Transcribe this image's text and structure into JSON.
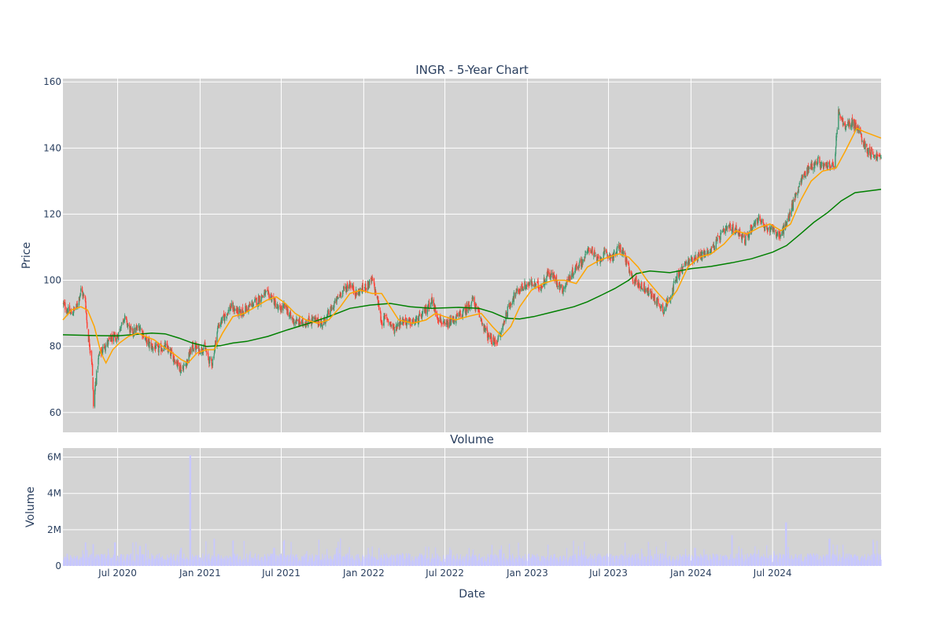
{
  "chart_data": [
    {
      "type": "candlestick",
      "title": "INGR - 5-Year Chart",
      "xlabel": "",
      "ylabel": "Price",
      "ylim": [
        54,
        161
      ],
      "xlim": [
        "2020-03-01",
        "2025-02-28"
      ],
      "y_ticks": [
        60,
        80,
        100,
        120,
        140,
        160
      ],
      "grid": true,
      "colors": {
        "plot_bg": "#d3d3d3",
        "grid": "#ffffff",
        "increasing": "#3d9970",
        "decreasing": "#ff4136",
        "ma_short": "#ffa500",
        "ma_long": "#008000"
      },
      "close_path": [
        [
          "2020-03-01",
          93
        ],
        [
          "2020-03-10",
          91
        ],
        [
          "2020-03-20",
          90
        ],
        [
          "2020-04-01",
          92
        ],
        [
          "2020-04-10",
          97
        ],
        [
          "2020-04-20",
          94
        ],
        [
          "2020-04-25",
          84
        ],
        [
          "2020-04-30",
          80
        ],
        [
          "2020-05-05",
          75
        ],
        [
          "2020-05-08",
          62
        ],
        [
          "2020-05-12",
          68
        ],
        [
          "2020-05-20",
          77
        ],
        [
          "2020-06-01",
          80
        ],
        [
          "2020-06-15",
          82
        ],
        [
          "2020-07-01",
          83
        ],
        [
          "2020-07-15",
          89
        ],
        [
          "2020-08-01",
          84
        ],
        [
          "2020-08-20",
          86
        ],
        [
          "2020-09-01",
          82
        ],
        [
          "2020-09-15",
          80
        ],
        [
          "2020-10-01",
          79
        ],
        [
          "2020-10-15",
          80
        ],
        [
          "2020-11-01",
          77
        ],
        [
          "2020-11-20",
          73
        ],
        [
          "2020-12-01",
          75
        ],
        [
          "2020-12-15",
          80
        ],
        [
          "2021-01-01",
          79
        ],
        [
          "2021-01-10",
          80
        ],
        [
          "2021-01-20",
          76
        ],
        [
          "2021-01-28",
          75
        ],
        [
          "2021-02-10",
          86
        ],
        [
          "2021-02-25",
          89
        ],
        [
          "2021-03-10",
          92
        ],
        [
          "2021-04-01",
          90
        ],
        [
          "2021-04-20",
          92
        ],
        [
          "2021-05-10",
          94
        ],
        [
          "2021-05-25",
          96
        ],
        [
          "2021-06-10",
          95
        ],
        [
          "2021-06-25",
          91
        ],
        [
          "2021-07-10",
          92
        ],
        [
          "2021-07-25",
          88
        ],
        [
          "2021-08-15",
          87
        ],
        [
          "2021-09-10",
          88
        ],
        [
          "2021-10-01",
          87
        ],
        [
          "2021-10-20",
          91
        ],
        [
          "2021-11-10",
          96
        ],
        [
          "2021-12-01",
          99
        ],
        [
          "2021-12-15",
          96
        ],
        [
          "2022-01-05",
          98
        ],
        [
          "2022-01-20",
          100
        ],
        [
          "2022-02-01",
          94
        ],
        [
          "2022-02-10",
          87
        ],
        [
          "2022-02-20",
          89
        ],
        [
          "2022-03-10",
          85
        ],
        [
          "2022-03-25",
          88
        ],
        [
          "2022-04-15",
          87
        ],
        [
          "2022-05-01",
          88
        ],
        [
          "2022-05-15",
          90
        ],
        [
          "2022-06-01",
          94
        ],
        [
          "2022-06-15",
          89
        ],
        [
          "2022-07-01",
          86
        ],
        [
          "2022-07-20",
          88
        ],
        [
          "2022-08-10",
          90
        ],
        [
          "2022-09-01",
          94
        ],
        [
          "2022-09-20",
          88
        ],
        [
          "2022-10-05",
          83
        ],
        [
          "2022-10-20",
          81
        ],
        [
          "2022-11-01",
          83
        ],
        [
          "2022-11-15",
          90
        ],
        [
          "2022-12-01",
          95
        ],
        [
          "2022-12-20",
          98
        ],
        [
          "2023-01-10",
          99
        ],
        [
          "2023-02-01",
          98
        ],
        [
          "2023-02-15",
          102
        ],
        [
          "2023-03-01",
          101
        ],
        [
          "2023-03-20",
          97
        ],
        [
          "2023-04-01",
          100
        ],
        [
          "2023-04-20",
          104
        ],
        [
          "2023-05-05",
          106
        ],
        [
          "2023-05-20",
          110
        ],
        [
          "2023-06-05",
          106
        ],
        [
          "2023-06-25",
          108
        ],
        [
          "2023-07-10",
          107
        ],
        [
          "2023-07-25",
          110
        ],
        [
          "2023-08-05",
          108
        ],
        [
          "2023-08-20",
          101
        ],
        [
          "2023-09-05",
          99
        ],
        [
          "2023-09-25",
          97
        ],
        [
          "2023-10-15",
          94
        ],
        [
          "2023-11-01",
          91
        ],
        [
          "2023-11-15",
          95
        ],
        [
          "2023-12-01",
          101
        ],
        [
          "2023-12-20",
          105
        ],
        [
          "2024-01-10",
          107
        ],
        [
          "2024-02-01",
          108
        ],
        [
          "2024-02-20",
          110
        ],
        [
          "2024-03-10",
          114
        ],
        [
          "2024-03-25",
          116
        ],
        [
          "2024-04-15",
          115
        ],
        [
          "2024-05-01",
          112
        ],
        [
          "2024-05-15",
          116
        ],
        [
          "2024-06-01",
          119
        ],
        [
          "2024-06-15",
          115
        ],
        [
          "2024-07-01",
          116
        ],
        [
          "2024-07-15",
          113
        ],
        [
          "2024-08-01",
          117
        ],
        [
          "2024-08-15",
          123
        ],
        [
          "2024-09-01",
          130
        ],
        [
          "2024-09-20",
          134
        ],
        [
          "2024-10-10",
          136
        ],
        [
          "2024-10-25",
          134
        ],
        [
          "2024-11-05",
          135
        ],
        [
          "2024-11-15",
          134
        ],
        [
          "2024-11-25",
          151
        ],
        [
          "2024-12-10",
          146
        ],
        [
          "2024-12-25",
          148
        ],
        [
          "2025-01-10",
          145
        ],
        [
          "2025-01-25",
          140
        ],
        [
          "2025-02-10",
          138
        ],
        [
          "2025-02-28",
          137
        ]
      ],
      "ma_short": [
        [
          "2020-03-01",
          88
        ],
        [
          "2020-03-20",
          91
        ],
        [
          "2020-04-10",
          92
        ],
        [
          "2020-04-25",
          91
        ],
        [
          "2020-05-10",
          86
        ],
        [
          "2020-05-25",
          78
        ],
        [
          "2020-06-05",
          75
        ],
        [
          "2020-06-20",
          79
        ],
        [
          "2020-07-05",
          81
        ],
        [
          "2020-07-25",
          83
        ],
        [
          "2020-08-15",
          84
        ],
        [
          "2020-09-01",
          83
        ],
        [
          "2020-09-20",
          82
        ],
        [
          "2020-10-10",
          80
        ],
        [
          "2020-11-01",
          78
        ],
        [
          "2020-11-20",
          76
        ],
        [
          "2020-12-05",
          75
        ],
        [
          "2020-12-25",
          78
        ],
        [
          "2021-01-15",
          79
        ],
        [
          "2021-02-01",
          79
        ],
        [
          "2021-02-20",
          84
        ],
        [
          "2021-03-15",
          89
        ],
        [
          "2021-04-10",
          90
        ],
        [
          "2021-05-05",
          92
        ],
        [
          "2021-05-30",
          94
        ],
        [
          "2021-06-20",
          95
        ],
        [
          "2021-07-10",
          93
        ],
        [
          "2021-08-01",
          90
        ],
        [
          "2021-08-25",
          88
        ],
        [
          "2021-09-20",
          87
        ],
        [
          "2021-10-15",
          88
        ],
        [
          "2021-11-10",
          92
        ],
        [
          "2021-12-01",
          96
        ],
        [
          "2021-12-25",
          97
        ],
        [
          "2022-01-20",
          96
        ],
        [
          "2022-02-10",
          96
        ],
        [
          "2022-03-01",
          92
        ],
        [
          "2022-03-20",
          88
        ],
        [
          "2022-04-20",
          87
        ],
        [
          "2022-05-20",
          88
        ],
        [
          "2022-06-10",
          90
        ],
        [
          "2022-07-01",
          89
        ],
        [
          "2022-07-25",
          88
        ],
        [
          "2022-08-20",
          89
        ],
        [
          "2022-09-20",
          90
        ],
        [
          "2022-10-15",
          86
        ],
        [
          "2022-11-05",
          83
        ],
        [
          "2022-11-25",
          86
        ],
        [
          "2022-12-15",
          92
        ],
        [
          "2023-01-10",
          97
        ],
        [
          "2023-02-05",
          99
        ],
        [
          "2023-03-01",
          100
        ],
        [
          "2023-03-25",
          100
        ],
        [
          "2023-04-20",
          99
        ],
        [
          "2023-05-15",
          104
        ],
        [
          "2023-06-10",
          106
        ],
        [
          "2023-07-01",
          107
        ],
        [
          "2023-07-25",
          108
        ],
        [
          "2023-08-15",
          107
        ],
        [
          "2023-09-05",
          104
        ],
        [
          "2023-09-25",
          100
        ],
        [
          "2023-10-20",
          96
        ],
        [
          "2023-11-10",
          93
        ],
        [
          "2023-12-01",
          97
        ],
        [
          "2023-12-25",
          104
        ],
        [
          "2024-01-20",
          107
        ],
        [
          "2024-02-15",
          108
        ],
        [
          "2024-03-15",
          111
        ],
        [
          "2024-04-10",
          115
        ],
        [
          "2024-05-05",
          114
        ],
        [
          "2024-06-01",
          116
        ],
        [
          "2024-06-25",
          117
        ],
        [
          "2024-07-20",
          115
        ],
        [
          "2024-08-10",
          117
        ],
        [
          "2024-09-01",
          124
        ],
        [
          "2024-09-25",
          130
        ],
        [
          "2024-10-20",
          133
        ],
        [
          "2024-11-20",
          134
        ],
        [
          "2024-12-10",
          139
        ],
        [
          "2025-01-05",
          146
        ],
        [
          "2025-01-20",
          145
        ],
        [
          "2025-02-28",
          143
        ]
      ],
      "ma_long": [
        [
          "2020-03-01",
          83.5
        ],
        [
          "2020-05-01",
          83.3
        ],
        [
          "2020-07-01",
          83.2
        ],
        [
          "2020-08-01",
          83.5
        ],
        [
          "2020-09-15",
          84
        ],
        [
          "2020-10-15",
          83.8
        ],
        [
          "2020-11-15",
          82.5
        ],
        [
          "2020-12-15",
          81
        ],
        [
          "2021-01-15",
          80
        ],
        [
          "2021-02-15",
          80.2
        ],
        [
          "2021-03-15",
          81
        ],
        [
          "2021-04-15",
          81.5
        ],
        [
          "2021-06-01",
          83
        ],
        [
          "2021-07-15",
          85
        ],
        [
          "2021-09-01",
          87
        ],
        [
          "2021-10-15",
          89
        ],
        [
          "2021-12-01",
          91.5
        ],
        [
          "2022-01-15",
          92.5
        ],
        [
          "2022-03-01",
          93
        ],
        [
          "2022-04-15",
          92
        ],
        [
          "2022-06-01",
          91.5
        ],
        [
          "2022-08-01",
          91.8
        ],
        [
          "2022-09-15",
          91.5
        ],
        [
          "2022-10-15",
          90.3
        ],
        [
          "2022-11-15",
          88.5
        ],
        [
          "2022-12-15",
          88.3
        ],
        [
          "2023-01-15",
          89
        ],
        [
          "2023-03-01",
          90.5
        ],
        [
          "2023-04-15",
          92
        ],
        [
          "2023-05-15",
          93.5
        ],
        [
          "2023-06-15",
          95.5
        ],
        [
          "2023-07-15",
          97.5
        ],
        [
          "2023-08-15",
          100
        ],
        [
          "2023-09-01",
          102
        ],
        [
          "2023-10-01",
          102.8
        ],
        [
          "2023-11-15",
          102.3
        ],
        [
          "2024-01-01",
          103.5
        ],
        [
          "2024-02-15",
          104.2
        ],
        [
          "2024-04-01",
          105.3
        ],
        [
          "2024-05-15",
          106.5
        ],
        [
          "2024-07-01",
          108.5
        ],
        [
          "2024-08-01",
          110.5
        ],
        [
          "2024-09-01",
          114
        ],
        [
          "2024-10-01",
          117.5
        ],
        [
          "2024-11-01",
          120.5
        ],
        [
          "2024-12-01",
          124
        ],
        [
          "2025-01-01",
          126.5
        ],
        [
          "2025-02-28",
          127.5
        ]
      ]
    },
    {
      "type": "bar",
      "title": "Volume",
      "xlabel": "Date",
      "ylabel": "Volume",
      "ylim": [
        0,
        6500000
      ],
      "y_ticks": [
        {
          "value": 0,
          "label": "0"
        },
        {
          "value": 2000000,
          "label": "2M"
        },
        {
          "value": 4000000,
          "label": "4M"
        },
        {
          "value": 6000000,
          "label": "6M"
        }
      ],
      "x_ticks": [
        {
          "date": "2020-07-01",
          "label": "Jul 2020"
        },
        {
          "date": "2021-01-01",
          "label": "Jan 2021"
        },
        {
          "date": "2021-07-01",
          "label": "Jul 2021"
        },
        {
          "date": "2022-01-01",
          "label": "Jan 2022"
        },
        {
          "date": "2022-07-01",
          "label": "Jul 2022"
        },
        {
          "date": "2023-01-01",
          "label": "Jan 2023"
        },
        {
          "date": "2023-07-01",
          "label": "Jul 2023"
        },
        {
          "date": "2024-01-01",
          "label": "Jan 2024"
        },
        {
          "date": "2024-07-01",
          "label": "Jul 2024"
        }
      ],
      "bar_color": "#c7c7ff",
      "base_volume_millions": 0.45,
      "spikes": [
        [
          "2020-04-20",
          1.3
        ],
        [
          "2020-05-08",
          1.2
        ],
        [
          "2020-06-25",
          1.3
        ],
        [
          "2020-08-20",
          1.1
        ],
        [
          "2020-11-20",
          1.0
        ],
        [
          "2020-12-10",
          6.1
        ],
        [
          "2021-02-01",
          1.5
        ],
        [
          "2021-03-15",
          1.4
        ],
        [
          "2021-06-15",
          1.0
        ],
        [
          "2021-11-01",
          1.0
        ],
        [
          "2022-02-05",
          1.0
        ],
        [
          "2022-11-01",
          0.9
        ],
        [
          "2023-05-01",
          0.9
        ],
        [
          "2023-10-01",
          0.9
        ],
        [
          "2024-01-10",
          1.0
        ],
        [
          "2024-04-01",
          1.7
        ],
        [
          "2024-06-01",
          0.9
        ],
        [
          "2024-07-31",
          2.4
        ],
        [
          "2024-11-05",
          1.5
        ],
        [
          "2025-02-10",
          1.3
        ]
      ]
    }
  ]
}
